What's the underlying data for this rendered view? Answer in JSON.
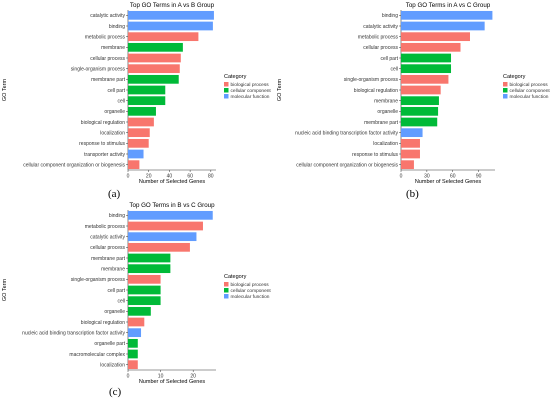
{
  "category_colors": {
    "biological process": "#F8766D",
    "cellular component": "#00BA38",
    "molecular function": "#619CFF"
  },
  "chart_data": [
    {
      "type": "bar",
      "panel_label": "(a)",
      "title": "Top GO Terms in A vs B Group",
      "xlabel": "Number of Selected Genes",
      "ylabel": "GO Term",
      "xlim": [
        0,
        85
      ],
      "xticks": [
        0,
        20,
        40,
        60,
        80
      ],
      "legend_title": "Category",
      "legend": [
        "biological process",
        "cellular component",
        "molecular function"
      ],
      "legend_position": "right",
      "categories": [
        "catalytic activity",
        "binding",
        "metabolic process",
        "membrane",
        "cellular process",
        "single-organism process",
        "membrane part",
        "cell part",
        "cell",
        "organelle",
        "biological regulation",
        "localization",
        "response to stimulus",
        "transporter activity",
        "cellular component organization or biogenesis"
      ],
      "values": [
        83,
        82,
        68,
        53,
        51,
        50,
        49,
        36,
        36,
        27,
        25,
        21,
        20,
        15,
        11
      ],
      "groups": [
        "molecular function",
        "molecular function",
        "biological process",
        "cellular component",
        "biological process",
        "biological process",
        "cellular component",
        "cellular component",
        "cellular component",
        "cellular component",
        "biological process",
        "biological process",
        "biological process",
        "molecular function",
        "biological process"
      ]
    },
    {
      "type": "bar",
      "panel_label": "(b)",
      "title": "Top GO Terms in A vs C Group",
      "xlabel": "Number of Selected Genes",
      "ylabel": "GO Term",
      "xlim": [
        0,
        109
      ],
      "xticks": [
        0,
        30,
        60,
        90
      ],
      "legend_title": "Category",
      "legend": [
        "biological process",
        "cellular component",
        "molecular function"
      ],
      "legend_position": "right",
      "categories": [
        "binding",
        "catalytic activity",
        "metabolic process",
        "cellular process",
        "cell part",
        "cell",
        "single-organism process",
        "biological regulation",
        "membrane",
        "organelle",
        "membrane part",
        "nucleic acid binding transcription factor activity",
        "localization",
        "response to stimulus",
        "cellular component organization or biogenesis"
      ],
      "values": [
        106,
        97,
        80,
        69,
        58,
        58,
        55,
        46,
        44,
        43,
        42,
        25,
        22,
        22,
        15
      ],
      "groups": [
        "molecular function",
        "molecular function",
        "biological process",
        "biological process",
        "cellular component",
        "cellular component",
        "biological process",
        "biological process",
        "cellular component",
        "cellular component",
        "cellular component",
        "molecular function",
        "biological process",
        "biological process",
        "biological process"
      ]
    },
    {
      "type": "bar",
      "panel_label": "(c)",
      "title": "Top GO Terms in B vs C Group",
      "xlabel": "Number of Selected Genes",
      "ylabel": "GO Term",
      "xlim": [
        0,
        27
      ],
      "xticks": [
        0,
        10,
        20
      ],
      "legend_title": "Category",
      "legend": [
        "biological process",
        "cellular component",
        "molecular function"
      ],
      "legend_position": "right",
      "categories": [
        "binding",
        "metabolic process",
        "catalytic activity",
        "cellular process",
        "membrane part",
        "membrane",
        "single-organism process",
        "cell part",
        "cell",
        "organelle",
        "biological regulation",
        "nucleic acid binding transcription factor activity",
        "organelle part",
        "macromolecular complex",
        "localization"
      ],
      "values": [
        26,
        23,
        21,
        19,
        13,
        13,
        10,
        10,
        10,
        7,
        5,
        4,
        3,
        3,
        3
      ],
      "groups": [
        "molecular function",
        "biological process",
        "molecular function",
        "biological process",
        "cellular component",
        "cellular component",
        "biological process",
        "cellular component",
        "cellular component",
        "cellular component",
        "biological process",
        "molecular function",
        "cellular component",
        "cellular component",
        "biological process"
      ]
    }
  ]
}
